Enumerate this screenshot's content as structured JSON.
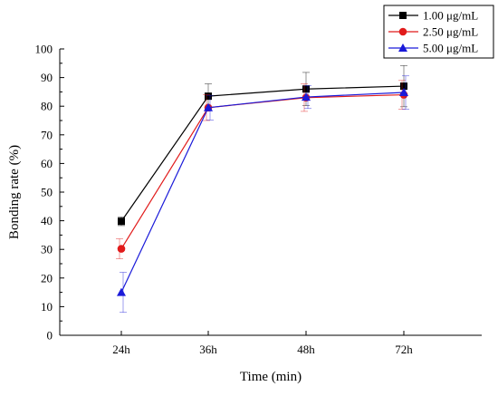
{
  "chart_data": {
    "type": "line",
    "title": "",
    "xlabel": "Time (min)",
    "ylabel": "Bonding rate (%)",
    "categories": [
      "24h",
      "36h",
      "48h",
      "72h"
    ],
    "ylim": [
      0,
      100
    ],
    "yticks": [
      "0",
      "10",
      "20",
      "30",
      "40",
      "50",
      "60",
      "70",
      "80",
      "90",
      "100"
    ],
    "grid": false,
    "legend_position": "top-right",
    "series": [
      {
        "name": "1.00 μg/mL",
        "color": "#000000",
        "marker": "square",
        "values": [
          39.8,
          83.5,
          86.0,
          87.0
        ],
        "errors": [
          1.5,
          4.3,
          5.8,
          7.2
        ]
      },
      {
        "name": "2.50 μg/mL",
        "color": "#e11b1b",
        "marker": "circle",
        "values": [
          30.2,
          79.5,
          83.0,
          84.0
        ],
        "errors": [
          3.5,
          4.5,
          4.8,
          5.0
        ]
      },
      {
        "name": "5.00 μg/mL",
        "color": "#1a1ad9",
        "marker": "triangle",
        "values": [
          15.0,
          79.5,
          83.2,
          84.8
        ],
        "errors": [
          7.0,
          4.3,
          4.0,
          5.8
        ]
      }
    ]
  }
}
